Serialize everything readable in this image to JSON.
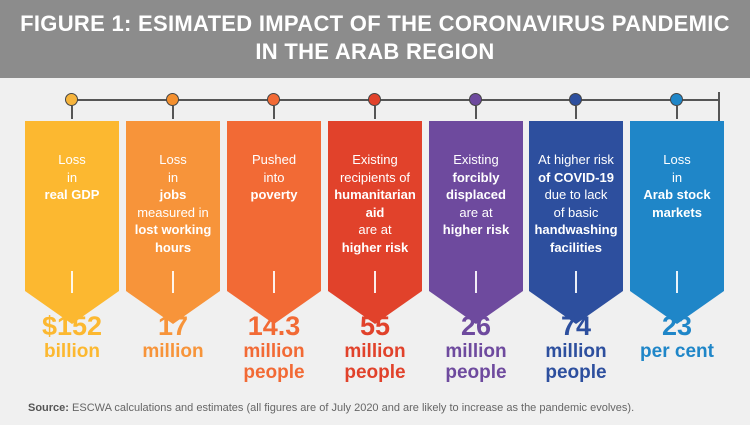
{
  "header": {
    "line1": "FIGURE 1: ESIMATED IMPACT OF THE CORONAVIRUS PANDEMIC",
    "line2": "IN THE ARAB REGION"
  },
  "items": [
    {
      "color": "#fcb830",
      "dot": "#f6b43c",
      "lines": [
        {
          "t": "Loss",
          "b": false
        },
        {
          "t": "in",
          "b": false
        },
        {
          "t": "real GDP",
          "b": true
        }
      ],
      "value": "$152",
      "unit": "billion",
      "unit2": ""
    },
    {
      "color": "#f7943a",
      "dot": "#f4902f",
      "lines": [
        {
          "t": "Loss",
          "b": false
        },
        {
          "t": "in",
          "b": false
        },
        {
          "t": "jobs",
          "b": true
        },
        {
          "t": "measured in",
          "b": false
        },
        {
          "t": "lost working",
          "b": true
        },
        {
          "t": "hours",
          "b": true
        }
      ],
      "value": "17",
      "unit": "million",
      "unit2": ""
    },
    {
      "color": "#f26a35",
      "dot": "#f26a35",
      "lines": [
        {
          "t": "Pushed",
          "b": false
        },
        {
          "t": "into",
          "b": false
        },
        {
          "t": "poverty",
          "b": true
        }
      ],
      "value": "14.3",
      "unit": "million",
      "unit2": "people"
    },
    {
      "color": "#e1422b",
      "dot": "#e1422b",
      "lines": [
        {
          "t": "Existing",
          "b": false
        },
        {
          "t": "recipients of",
          "b": false
        },
        {
          "t": "humanitarian",
          "b": true
        },
        {
          "t": "aid",
          "b": true
        },
        {
          "t": "are at",
          "b": false
        },
        {
          "t": "higher risk",
          "b": true
        }
      ],
      "value": "55",
      "unit": "million",
      "unit2": "people"
    },
    {
      "color": "#6e4a9e",
      "dot": "#6e4a9e",
      "lines": [
        {
          "t": "Existing",
          "b": false
        },
        {
          "t": "forcibly",
          "b": true
        },
        {
          "t": "displaced",
          "b": true
        },
        {
          "t": "are at",
          "b": false
        },
        {
          "t": "higher risk",
          "b": true
        }
      ],
      "value": "26",
      "unit": "million",
      "unit2": "people"
    },
    {
      "color": "#2d4f9e",
      "dot": "#2d4f9e",
      "lines": [
        {
          "t": "At higher risk",
          "b": false
        },
        {
          "t": "of COVID-19",
          "b": true
        },
        {
          "t": "due to lack",
          "b": false
        },
        {
          "t": "of basic",
          "b": false
        },
        {
          "t": "handwashing",
          "b": true
        },
        {
          "t": "facilities",
          "b": true
        }
      ],
      "value": "74",
      "unit": "million",
      "unit2": "people"
    },
    {
      "color": "#1f86c8",
      "dot": "#1f86c8",
      "lines": [
        {
          "t": "Loss",
          "b": false
        },
        {
          "t": "in",
          "b": false
        },
        {
          "t": "Arab stock",
          "b": true
        },
        {
          "t": "markets",
          "b": true
        }
      ],
      "value": "23",
      "unit": "per cent",
      "unit2": ""
    }
  ],
  "source": {
    "label": "Source:",
    "text": "ESCWA calculations and estimates (all figures are of July 2020 and are likely to increase as the pandemic evolves)."
  }
}
